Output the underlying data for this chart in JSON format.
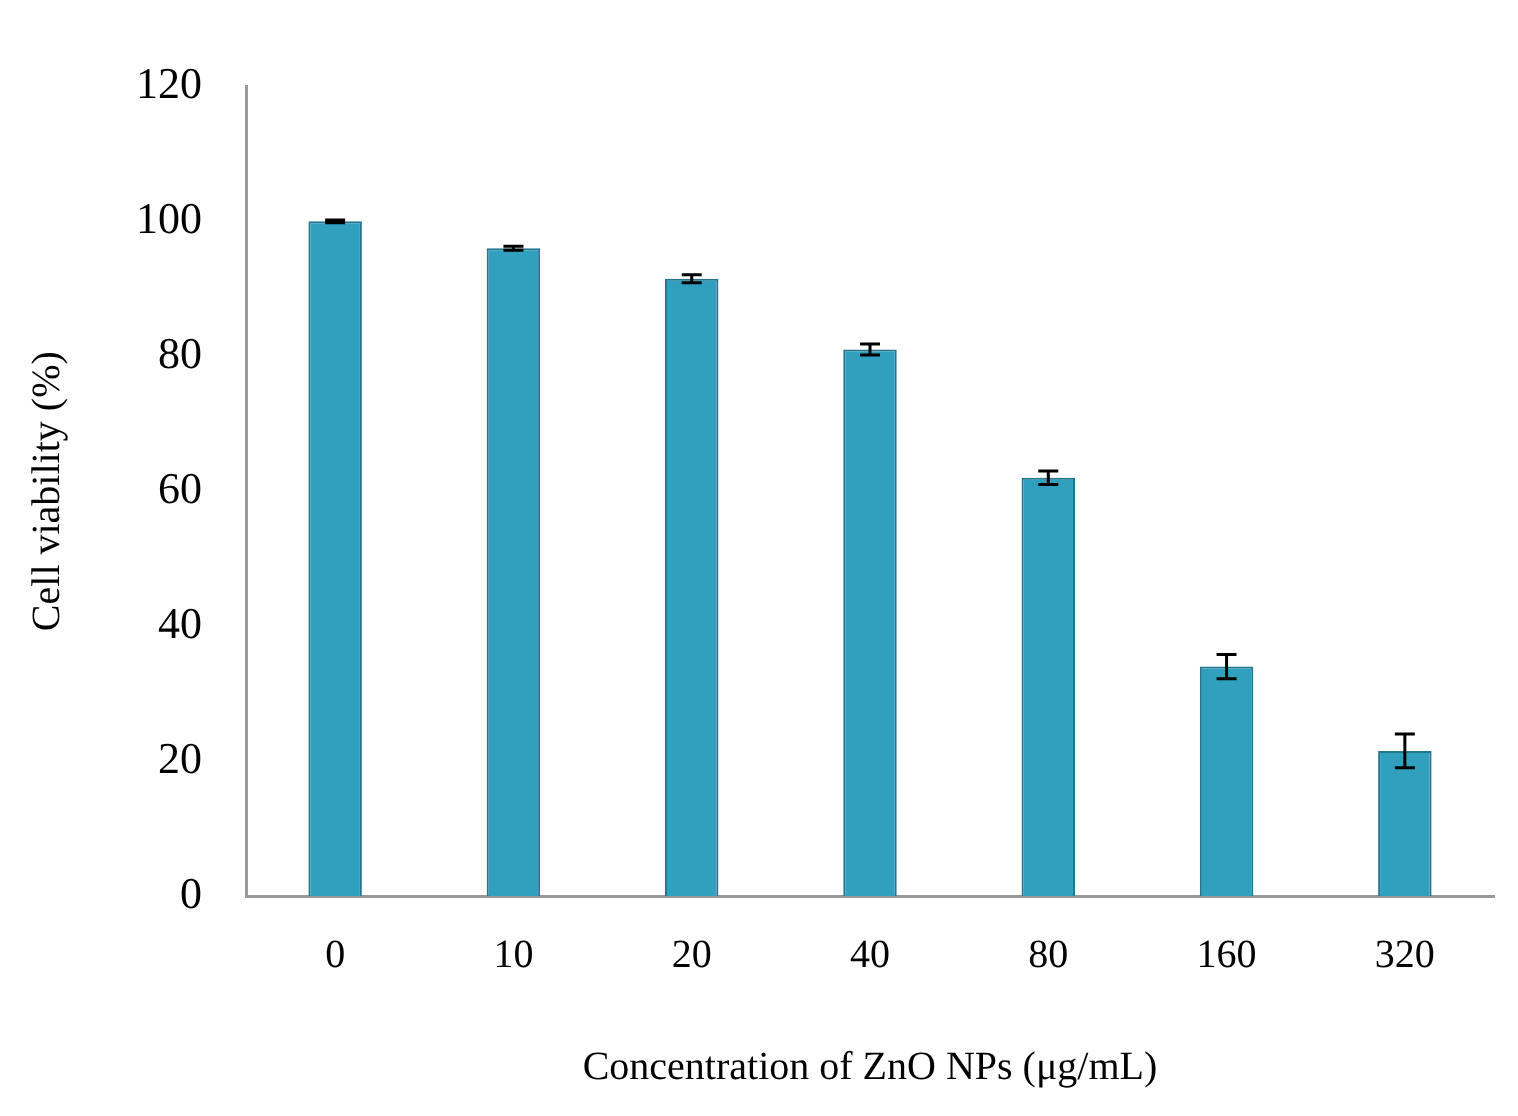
{
  "chart_data": {
    "type": "bar",
    "xlabel": "Concentration of ZnO NPs (μg/mL)",
    "ylabel": "Cell viability (%)",
    "categories": [
      "0",
      "10",
      "20",
      "40",
      "80",
      "160",
      "320"
    ],
    "values": [
      100,
      96,
      91.5,
      81,
      62,
      34,
      21.5
    ],
    "errors": [
      0.2,
      0.3,
      0.6,
      0.8,
      1,
      1.8,
      2.5
    ],
    "color": "#31a0bf",
    "ylim": [
      0,
      120
    ],
    "yticks": [
      0,
      20,
      40,
      60,
      80,
      100,
      120
    ],
    "grid": false,
    "legend": false
  }
}
